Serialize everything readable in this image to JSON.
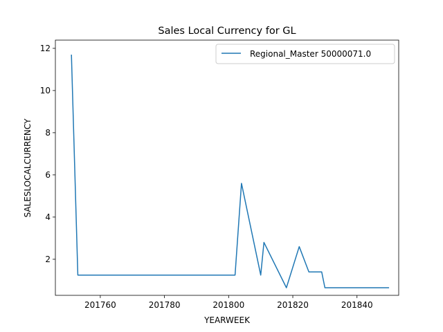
{
  "chart_data": {
    "type": "line",
    "title": "Sales Local Currency for GL",
    "xlabel": "YEARWEEK",
    "ylabel": "SALESLOCALCURRENCY",
    "xlim": [
      201746,
      201853
    ],
    "ylim": [
      0.29,
      12.39
    ],
    "xticks": [
      201760,
      201780,
      201800,
      201820,
      201840
    ],
    "yticks": [
      2,
      4,
      6,
      8,
      10,
      12
    ],
    "grid": false,
    "legend_position": "top-right",
    "series": [
      {
        "name": "Regional_Master 50000071.0",
        "color": "#1f77b4",
        "x": [
          201751,
          201753,
          201802,
          201804,
          201810,
          201811,
          201818,
          201822,
          201825,
          201829,
          201830,
          201850
        ],
        "y": [
          11.7,
          1.25,
          1.25,
          5.6,
          1.25,
          2.8,
          0.65,
          2.6,
          1.4,
          1.4,
          0.65,
          0.65
        ]
      }
    ]
  }
}
